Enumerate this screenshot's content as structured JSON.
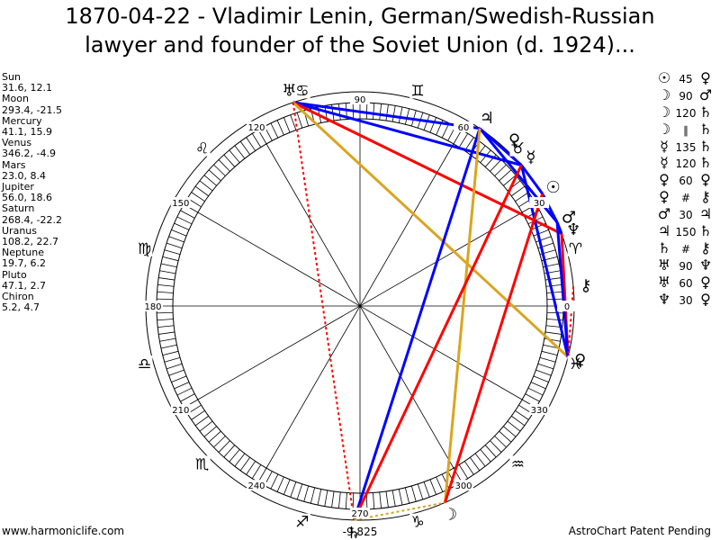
{
  "title": {
    "line1": "1870-04-22 - Vladimir Lenin, German/Swedish-Russian",
    "line2": "lawyer and founder of the Soviet Union (d. 1924)..."
  },
  "planets": [
    {
      "name": "Sun",
      "values": "31.6, 12.1"
    },
    {
      "name": "Moon",
      "values": "293.4, -21.5"
    },
    {
      "name": "Mercury",
      "values": "41.1, 15.9"
    },
    {
      "name": "Venus",
      "values": "346.2, -4.9"
    },
    {
      "name": "Mars",
      "values": "23.0, 8.4"
    },
    {
      "name": "Jupiter",
      "values": "56.0, 18.6"
    },
    {
      "name": "Saturn",
      "values": "268.4, -22.2"
    },
    {
      "name": "Uranus",
      "values": "108.2, 22.7"
    },
    {
      "name": "Neptune",
      "values": "19.7, 6.2"
    },
    {
      "name": "Pluto",
      "values": "47.1, 2.7"
    },
    {
      "name": "Chiron",
      "values": "5.2, 4.7"
    }
  ],
  "aspects_list": [
    {
      "p1": "☉",
      "aspect": "45",
      "p2": "♀"
    },
    {
      "p1": "☽",
      "aspect": "90",
      "p2": "♂"
    },
    {
      "p1": "☽",
      "aspect": "120",
      "p2": "♄"
    },
    {
      "p1": "☽",
      "aspect": "∥",
      "p2": "♄"
    },
    {
      "p1": "☿",
      "aspect": "135",
      "p2": "♄"
    },
    {
      "p1": "☿",
      "aspect": "120",
      "p2": "♄"
    },
    {
      "p1": "♀",
      "aspect": "60",
      "p2": "♀"
    },
    {
      "p1": "♀",
      "aspect": "#",
      "p2": "⚷"
    },
    {
      "p1": "♂",
      "aspect": "30",
      "p2": "♃"
    },
    {
      "p1": "♃",
      "aspect": "150",
      "p2": "♄"
    },
    {
      "p1": "♄",
      "aspect": "#",
      "p2": "⚷"
    },
    {
      "p1": "♅",
      "aspect": "90",
      "p2": "♆"
    },
    {
      "p1": "♅",
      "aspect": "60",
      "p2": "♀"
    },
    {
      "p1": "♆",
      "aspect": "30",
      "p2": "♀"
    }
  ],
  "wheel": {
    "degree_labels": [
      {
        "deg": 0,
        "text": "0"
      },
      {
        "deg": 30,
        "text": "30"
      },
      {
        "deg": 60,
        "text": "60"
      },
      {
        "deg": 90,
        "text": "90"
      },
      {
        "deg": 120,
        "text": "120"
      },
      {
        "deg": 150,
        "text": "150"
      },
      {
        "deg": 180,
        "text": "180"
      },
      {
        "deg": 210,
        "text": "210"
      },
      {
        "deg": 240,
        "text": "240"
      },
      {
        "deg": 270,
        "text": "270"
      },
      {
        "deg": 300,
        "text": "300"
      },
      {
        "deg": 330,
        "text": "330"
      }
    ],
    "signs": [
      {
        "name": "aries",
        "glyph": "♈",
        "deg": 15
      },
      {
        "name": "taurus",
        "glyph": "♉",
        "deg": 45
      },
      {
        "name": "gemini",
        "glyph": "♊",
        "deg": 75
      },
      {
        "name": "cancer",
        "glyph": "♋",
        "deg": 105
      },
      {
        "name": "leo",
        "glyph": "♌",
        "deg": 135
      },
      {
        "name": "virgo",
        "glyph": "♍",
        "deg": 165
      },
      {
        "name": "libra",
        "glyph": "♎",
        "deg": 195
      },
      {
        "name": "scorpio",
        "glyph": "♏",
        "deg": 225
      },
      {
        "name": "sagittarius",
        "glyph": "♐",
        "deg": 255
      },
      {
        "name": "capricorn",
        "glyph": "♑",
        "deg": 285
      },
      {
        "name": "aquarius",
        "glyph": "♒",
        "deg": 315
      },
      {
        "name": "pisces",
        "glyph": "♓",
        "deg": 345
      }
    ],
    "bodies": [
      {
        "name": "sun",
        "glyph": "☉",
        "lon": 31.6
      },
      {
        "name": "moon",
        "glyph": "☽",
        "lon": 293.4
      },
      {
        "name": "mercury",
        "glyph": "☿",
        "lon": 41.1
      },
      {
        "name": "venus",
        "glyph": "♀",
        "lon": 346.2
      },
      {
        "name": "mars",
        "glyph": "♂",
        "lon": 23.0
      },
      {
        "name": "jupiter",
        "glyph": "♃",
        "lon": 56.0
      },
      {
        "name": "saturn",
        "glyph": "♄",
        "lon": 268.4
      },
      {
        "name": "uranus",
        "glyph": "♅",
        "lon": 108.2
      },
      {
        "name": "neptune",
        "glyph": "♆",
        "lon": 19.7
      },
      {
        "name": "pluto",
        "glyph": "♀",
        "lon": 47.1
      },
      {
        "name": "chiron",
        "glyph": "⚷",
        "lon": 5.2
      }
    ],
    "aspect_lines": [
      {
        "a": 108.2,
        "b": 56.0,
        "color": "#0000ff",
        "dashed": false
      },
      {
        "a": 108.2,
        "b": 41.1,
        "color": "#0000ff",
        "dashed": false
      },
      {
        "a": 108.2,
        "b": 19.7,
        "color": "#ff0000",
        "dashed": false
      },
      {
        "a": 108.2,
        "b": 346.2,
        "color": "#daa520",
        "dashed": false
      },
      {
        "a": 108.2,
        "b": 268.4,
        "color": "#ff0000",
        "dashed": true
      },
      {
        "a": 56.0,
        "b": 41.1,
        "color": "#0000ff",
        "dashed": false
      },
      {
        "a": 56.0,
        "b": 23.0,
        "color": "#0000ff",
        "dashed": false
      },
      {
        "a": 56.0,
        "b": 268.4,
        "color": "#0000ff",
        "dashed": false
      },
      {
        "a": 56.0,
        "b": 293.4,
        "color": "#daa520",
        "dashed": false
      },
      {
        "a": 41.1,
        "b": 31.6,
        "color": "#0000ff",
        "dashed": false
      },
      {
        "a": 41.1,
        "b": 346.2,
        "color": "#0000ff",
        "dashed": false
      },
      {
        "a": 41.1,
        "b": 268.4,
        "color": "#ff0000",
        "dashed": false
      },
      {
        "a": 31.6,
        "b": 23.0,
        "color": "#0000ff",
        "dashed": false
      },
      {
        "a": 31.6,
        "b": 293.4,
        "color": "#ff0000",
        "dashed": false
      },
      {
        "a": 23.0,
        "b": 19.7,
        "color": "#0000ff",
        "dashed": false
      },
      {
        "a": 19.7,
        "b": 346.2,
        "color": "#ff0000",
        "dashed": false
      },
      {
        "a": 23.0,
        "b": 346.2,
        "color": "#0000ff",
        "dashed": false
      },
      {
        "a": 5.2,
        "b": 346.2,
        "color": "#ff0000",
        "dashed": true
      },
      {
        "a": 268.4,
        "b": 293.4,
        "color": "#daa520",
        "dashed": true
      }
    ]
  },
  "bottom_value": "-9,825",
  "footer": {
    "left": "www.harmoniclife.com",
    "right": "AstroChart Patent Pending"
  },
  "colors": {
    "square": "#ff0000",
    "trine": "#0000ff",
    "sextile": "#daa520"
  }
}
